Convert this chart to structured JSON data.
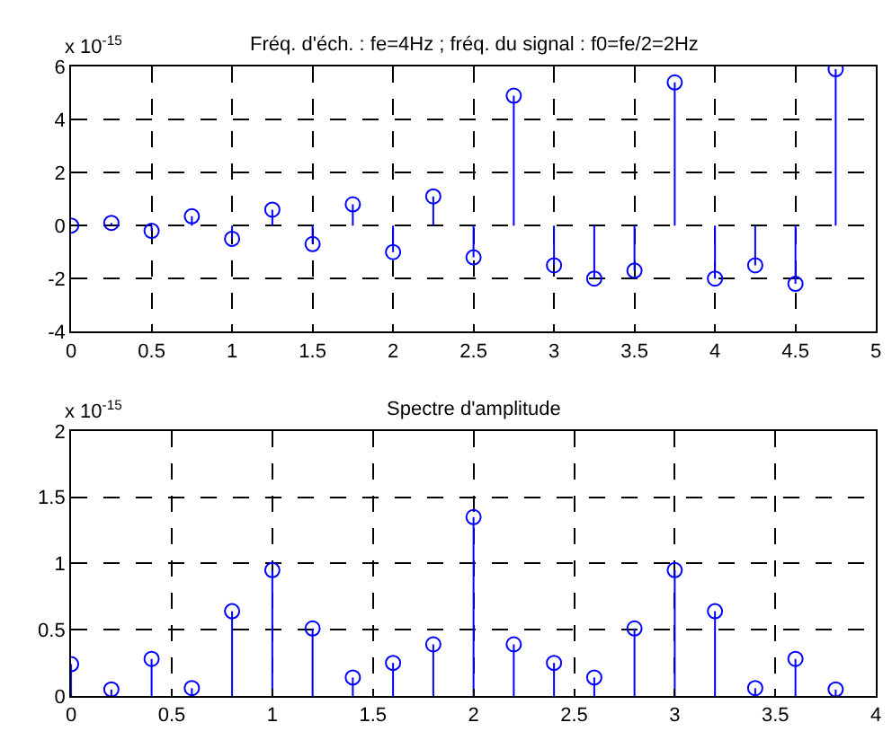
{
  "chart_data": [
    {
      "type": "lollipop",
      "title": "Fréq. d'éch. : fe=4Hz ; fréq. du signal : f0=fe/2=2Hz",
      "annotations": [
        "x 10$^{-15}$"
      ],
      "x": [
        0,
        0.25,
        0.5,
        0.75,
        1,
        1.25,
        1.5,
        1.75,
        2,
        2.25,
        2.5,
        2.75,
        3,
        3.25,
        3.5,
        3.75,
        4,
        4.25,
        4.5,
        4.75
      ],
      "series": [
        {
          "color": "#0000ff",
          "values": [
            0,
            0.1,
            -0.2,
            0.35,
            -0.5,
            0.6,
            -0.7,
            0.8,
            -1.0,
            1.1,
            -1.2,
            4.9,
            -1.5,
            -2.0,
            -1.7,
            5.4,
            -2.0,
            -1.5,
            -2.2,
            5.9
          ]
        }
      ],
      "xlim": [
        0,
        5
      ],
      "xticks": [
        0,
        0.5,
        1,
        1.5,
        2,
        2.5,
        3,
        3.5,
        4,
        4.5,
        5
      ],
      "ylim": [
        -4,
        6
      ],
      "yticks": [
        -4,
        -2,
        0,
        2,
        4,
        6
      ],
      "grid": true,
      "marker": "circle"
    },
    {
      "type": "lollipop",
      "title": "Spectre d'amplitude",
      "annotations": [
        "x 10$^{-15}$"
      ],
      "x": [
        0,
        0.2,
        0.4,
        0.6,
        0.8,
        1,
        1.2,
        1.4,
        1.6,
        1.8,
        2,
        2.2,
        2.4,
        2.6,
        2.8,
        3,
        3.2,
        3.4,
        3.6,
        3.8
      ],
      "series": [
        {
          "color": "#0000ff",
          "values": [
            0.24,
            0.05,
            0.28,
            0.06,
            0.64,
            0.95,
            0.51,
            0.14,
            0.25,
            0.39,
            1.35,
            0.39,
            0.25,
            0.14,
            0.51,
            0.95,
            0.64,
            0.06,
            0.28,
            0.05
          ]
        }
      ],
      "xlim": [
        0,
        4
      ],
      "xticks": [
        0,
        0.5,
        1,
        1.5,
        2,
        2.5,
        3,
        3.5,
        4
      ],
      "ylim": [
        0,
        2
      ],
      "yticks": [
        0,
        0.5,
        1,
        1.5,
        2
      ],
      "grid": true,
      "marker": "circle"
    }
  ]
}
